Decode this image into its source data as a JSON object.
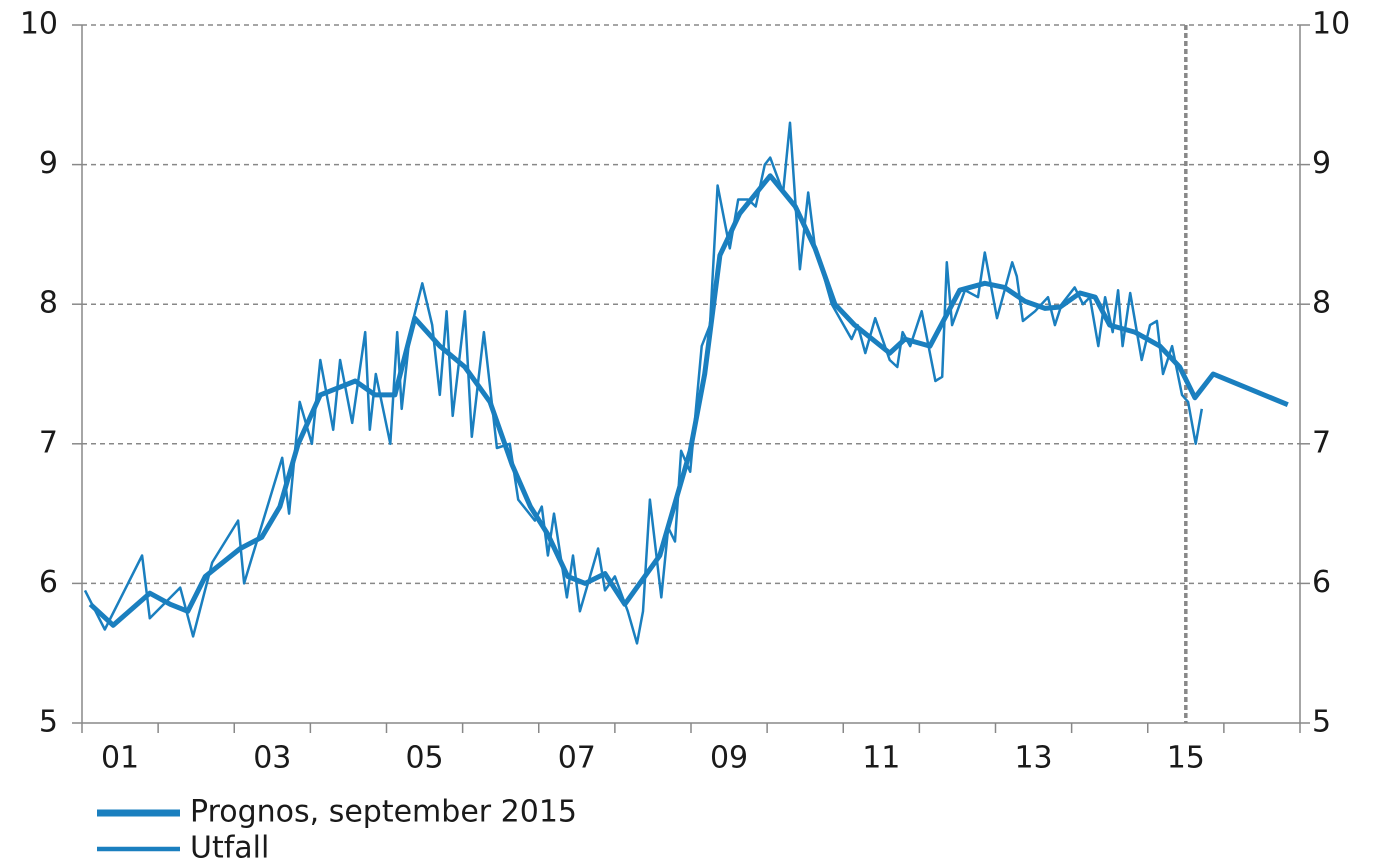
{
  "chart_data": {
    "type": "line",
    "xlim": [
      2001,
      2017
    ],
    "xticks": [
      2001,
      2002,
      2003,
      2004,
      2005,
      2006,
      2007,
      2008,
      2009,
      2010,
      2011,
      2012,
      2013,
      2014,
      2015,
      2016,
      2017
    ],
    "xtick_labels": [
      {
        "value": 2001.5,
        "label": "01"
      },
      {
        "value": 2003.5,
        "label": "03"
      },
      {
        "value": 2005.5,
        "label": "05"
      },
      {
        "value": 2007.5,
        "label": "07"
      },
      {
        "value": 2009.5,
        "label": "09"
      },
      {
        "value": 2011.5,
        "label": "11"
      },
      {
        "value": 2013.5,
        "label": "13"
      },
      {
        "value": 2015.5,
        "label": "15"
      }
    ],
    "ylim": [
      5,
      10
    ],
    "yticks": [
      5,
      6,
      7,
      8,
      9,
      10
    ],
    "y2lim": [
      5,
      10
    ],
    "y2ticks": [
      5,
      6,
      7,
      8,
      9,
      10
    ],
    "grid": true,
    "vline": 2015.5,
    "legend": "bottom-left",
    "series": [
      {
        "name": "Prognos, september 2015",
        "color": "#1a7fbf",
        "width": 5,
        "x": [
          2001.11,
          2001.41,
          2001.89,
          2002.16,
          2002.39,
          2002.62,
          2003.08,
          2003.36,
          2003.6,
          2003.84,
          2004.13,
          2004.59,
          2004.85,
          2005.11,
          2005.37,
          2005.7,
          2006.03,
          2006.36,
          2006.65,
          2006.89,
          2007.12,
          2007.38,
          2007.61,
          2007.87,
          2008.13,
          2008.59,
          2008.99,
          2009.18,
          2009.38,
          2009.64,
          2010.04,
          2010.37,
          2010.63,
          2010.89,
          2011.15,
          2011.61,
          2011.81,
          2012.14,
          2012.53,
          2012.86,
          2013.12,
          2013.39,
          2013.65,
          2013.85,
          2014.11,
          2014.31,
          2014.5,
          2014.83,
          2015.16,
          2015.42,
          2015.62,
          2015.86,
          2016.84
        ],
        "values": [
          5.85,
          5.7,
          5.93,
          5.85,
          5.8,
          6.05,
          6.25,
          6.33,
          6.55,
          7.0,
          7.35,
          7.45,
          7.35,
          7.35,
          7.9,
          7.7,
          7.55,
          7.3,
          6.85,
          6.55,
          6.35,
          6.05,
          6.0,
          6.07,
          5.85,
          6.2,
          6.95,
          7.5,
          8.35,
          8.65,
          8.92,
          8.7,
          8.4,
          8.0,
          7.85,
          7.65,
          7.75,
          7.7,
          8.1,
          8.15,
          8.12,
          8.02,
          7.97,
          7.98,
          8.08,
          8.05,
          7.85,
          7.8,
          7.7,
          7.55,
          7.33,
          7.5,
          7.28
        ]
      },
      {
        "name": "Utfall",
        "color": "#1a7fbf",
        "width": 2.5,
        "x": [
          2001.04,
          2001.3,
          2001.79,
          2001.89,
          2002.29,
          2002.46,
          2002.71,
          2003.05,
          2003.13,
          2003.63,
          2003.72,
          2003.86,
          2004.02,
          2004.13,
          2004.3,
          2004.39,
          2004.55,
          2004.72,
          2004.78,
          2004.86,
          2005.05,
          2005.14,
          2005.2,
          2005.31,
          2005.47,
          2005.6,
          2005.7,
          2005.79,
          2005.87,
          2006.03,
          2006.12,
          2006.28,
          2006.45,
          2006.62,
          2006.73,
          2006.95,
          2007.04,
          2007.12,
          2007.2,
          2007.37,
          2007.45,
          2007.54,
          2007.78,
          2007.87,
          2008.0,
          2008.17,
          2008.29,
          2008.37,
          2008.46,
          2008.61,
          2008.7,
          2008.79,
          2008.87,
          2008.99,
          2009.14,
          2009.25,
          2009.35,
          2009.51,
          2009.62,
          2009.75,
          2009.85,
          2009.97,
          2010.04,
          2010.21,
          2010.3,
          2010.43,
          2010.54,
          2010.63,
          2010.72,
          2010.85,
          2011.11,
          2011.19,
          2011.29,
          2011.42,
          2011.61,
          2011.71,
          2011.78,
          2011.88,
          2012.03,
          2012.21,
          2012.3,
          2012.36,
          2012.43,
          2012.6,
          2012.77,
          2012.86,
          2013.02,
          2013.22,
          2013.28,
          2013.36,
          2013.52,
          2013.69,
          2013.78,
          2013.87,
          2014.04,
          2014.15,
          2014.24,
          2014.35,
          2014.44,
          2014.54,
          2014.61,
          2014.67,
          2014.77,
          2014.92,
          2015.03,
          2015.12,
          2015.2,
          2015.32,
          2015.45,
          2015.53,
          2015.63,
          2015.71
        ],
        "values": [
          5.95,
          5.67,
          6.2,
          5.75,
          5.97,
          5.62,
          6.15,
          6.45,
          6.0,
          6.9,
          6.5,
          7.3,
          7.0,
          7.6,
          7.1,
          7.6,
          7.15,
          7.8,
          7.1,
          7.5,
          7.0,
          7.8,
          7.25,
          7.8,
          8.15,
          7.85,
          7.35,
          7.95,
          7.2,
          7.95,
          7.05,
          7.8,
          6.97,
          7.0,
          6.6,
          6.45,
          6.55,
          6.2,
          6.5,
          5.9,
          6.2,
          5.8,
          6.25,
          5.95,
          6.05,
          5.8,
          5.57,
          5.8,
          6.6,
          5.9,
          6.4,
          6.3,
          6.95,
          6.8,
          7.7,
          7.85,
          8.85,
          8.4,
          8.75,
          8.75,
          8.7,
          9.0,
          9.05,
          8.8,
          9.3,
          8.25,
          8.8,
          8.4,
          8.25,
          8.0,
          7.75,
          7.85,
          7.65,
          7.9,
          7.6,
          7.55,
          7.8,
          7.7,
          7.95,
          7.45,
          7.48,
          8.3,
          7.85,
          8.1,
          8.05,
          8.37,
          7.9,
          8.3,
          8.2,
          7.88,
          7.95,
          8.05,
          7.85,
          8.0,
          8.12,
          8.0,
          8.05,
          7.7,
          8.05,
          7.8,
          8.1,
          7.7,
          8.08,
          7.6,
          7.85,
          7.88,
          7.5,
          7.7,
          7.35,
          7.3,
          7.0,
          7.25
        ]
      }
    ]
  }
}
